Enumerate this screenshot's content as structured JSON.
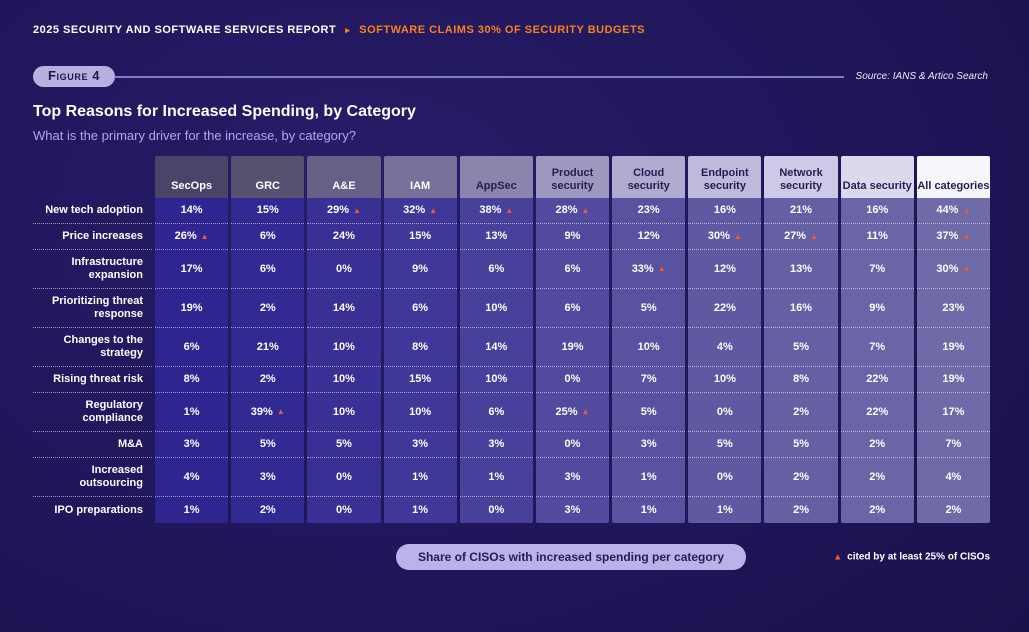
{
  "topbar": {
    "report_title": "2025 SECURITY AND SOFTWARE SERVICES REPORT",
    "separator": "▸",
    "highlight": "SOFTWARE CLAIMS 30% OF SECURITY BUDGETS"
  },
  "figure": {
    "badge": "Figure 4",
    "source": "Source: IANS & Artico Search"
  },
  "heading": {
    "title": "Top Reasons for Increased Spending, by Category",
    "subtitle": "What is the primary driver for the increase, by category?"
  },
  "footer": {
    "pill": "Share of CISOs with increased spending per category",
    "legend_marker": "▲",
    "legend_text": "cited by at least 25% of CISOs"
  },
  "colors": {
    "accent_orange": "#f5821f",
    "marker_orange": "#ee5a3a",
    "title_white": "#ffffff",
    "subtitle_purple": "#b4a5f2",
    "badge_bg": "#b7b1e0",
    "badge_fg": "#1d1648",
    "divider_line": "#847cc0",
    "source_fg": "#eceaf8",
    "pill_bg": "#b9b3ea",
    "pill_fg": "#241c55",
    "header_bg": [
      "#4a4468",
      "#575170",
      "#665f86",
      "#76709a",
      "#8b85ad",
      "#9d98c0",
      "#aeaad0",
      "#bdbadc",
      "#cccae6",
      "#dbd9ee",
      "#f7f6fc"
    ],
    "header_fg": [
      "#ffffff",
      "#ffffff",
      "#ffffff",
      "#ffffff",
      "#241e50",
      "#241e50",
      "#241e50",
      "#241e50",
      "#241e50",
      "#241e50",
      "#241e50"
    ],
    "cell_bg": [
      "#2e2590",
      "#322a93",
      "#383095",
      "#403898",
      "#48419b",
      "#514a9e",
      "#5852a0",
      "#5f59a2",
      "#6560a4",
      "#6a65a6",
      "#6f6aa8"
    ]
  },
  "chart_data": {
    "type": "table",
    "title": "Top Reasons for Increased Spending, by Category",
    "subtitle": "What is the primary driver for the increase, by category?",
    "unit": "%",
    "caption": "Share of CISOs with increased spending per category",
    "note": "▲ cited by at least 25% of CISOs",
    "columns": [
      "SecOps",
      "GRC",
      "A&E",
      "IAM",
      "AppSec",
      "Product security",
      "Cloud security",
      "Endpoint security",
      "Network security",
      "Data security",
      "All categories"
    ],
    "rows": [
      {
        "label": "New tech adoption",
        "values": [
          14,
          15,
          29,
          32,
          38,
          28,
          23,
          16,
          21,
          16,
          44
        ],
        "flagged": [
          2,
          3,
          4,
          5,
          10
        ]
      },
      {
        "label": "Price increases",
        "values": [
          26,
          6,
          24,
          15,
          13,
          9,
          12,
          30,
          27,
          11,
          37
        ],
        "flagged": [
          0,
          7,
          8,
          10
        ]
      },
      {
        "label": "Infrastructure expansion",
        "values": [
          17,
          6,
          0,
          9,
          6,
          6,
          33,
          12,
          13,
          7,
          30
        ],
        "flagged": [
          6,
          10
        ]
      },
      {
        "label": "Prioritizing threat response",
        "values": [
          19,
          2,
          14,
          6,
          10,
          6,
          5,
          22,
          16,
          9,
          23
        ],
        "flagged": []
      },
      {
        "label": "Changes to the strategy",
        "values": [
          6,
          21,
          10,
          8,
          14,
          19,
          10,
          4,
          5,
          7,
          19
        ],
        "flagged": []
      },
      {
        "label": "Rising threat risk",
        "values": [
          8,
          2,
          10,
          15,
          10,
          0,
          7,
          10,
          8,
          22,
          19
        ],
        "flagged": []
      },
      {
        "label": "Regulatory compliance",
        "values": [
          1,
          39,
          10,
          10,
          6,
          25,
          5,
          0,
          2,
          22,
          17
        ],
        "flagged": [
          1,
          5
        ]
      },
      {
        "label": "M&A",
        "values": [
          3,
          5,
          5,
          3,
          3,
          0,
          3,
          5,
          5,
          2,
          7
        ],
        "flagged": []
      },
      {
        "label": "Increased outsourcing",
        "values": [
          4,
          3,
          0,
          1,
          1,
          3,
          1,
          0,
          2,
          2,
          4
        ],
        "flagged": []
      },
      {
        "label": "IPO preparations",
        "values": [
          1,
          2,
          0,
          1,
          0,
          3,
          1,
          1,
          2,
          2,
          2
        ],
        "flagged": []
      }
    ]
  }
}
